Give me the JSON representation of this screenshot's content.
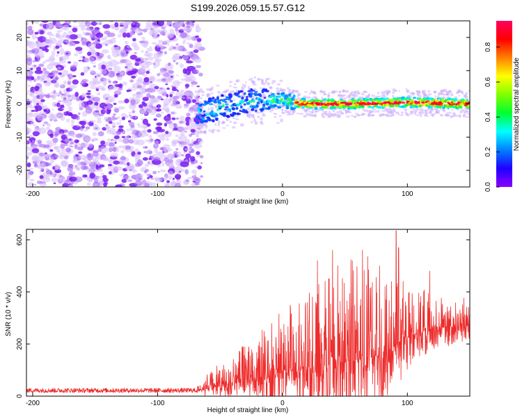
{
  "title": "S199.2026.059.15.57.G12",
  "chart_data": [
    {
      "type": "heatmap",
      "name": "spectrogram",
      "xlabel": "Height of straight line (km)",
      "ylabel": "Frequency (Hz)",
      "xlim": [
        -205,
        150
      ],
      "ylim": [
        -25,
        25
      ],
      "xticks": [
        -200,
        -100,
        0,
        100
      ],
      "xtick_labels": [
        "-200",
        "-100",
        "0",
        "100"
      ],
      "yticks": [
        -20,
        -10,
        0,
        10,
        20
      ],
      "ytick_labels": [
        "-20",
        "-10",
        "0",
        "10",
        "20"
      ],
      "noise_region_x": [
        -205,
        -68
      ],
      "signal_region_x": [
        -68,
        150
      ],
      "signal_frequency_hz": [
        {
          "x": -68,
          "f": -3
        },
        {
          "x": -50,
          "f": -1
        },
        {
          "x": -25,
          "f": 1
        },
        {
          "x": 0,
          "f": 1
        },
        {
          "x": 20,
          "f": 0
        },
        {
          "x": 60,
          "f": 0
        },
        {
          "x": 100,
          "f": 0.5
        },
        {
          "x": 150,
          "f": 0
        }
      ],
      "colorbar": {
        "label": "Normalized spectral amplitude",
        "range": [
          0,
          0.95
        ],
        "ticks": [
          0,
          0.2,
          0.4,
          0.6,
          0.8
        ],
        "tick_labels": [
          "0.0",
          "0.2",
          "0.4",
          "0.6",
          "0.8"
        ],
        "colors": [
          "#8a00ff",
          "#2000ff",
          "#0080ff",
          "#00ffff",
          "#00ff30",
          "#80ff00",
          "#ffff00",
          "#ff8000",
          "#ff0000",
          "#ff0060"
        ]
      }
    },
    {
      "type": "line",
      "name": "snr",
      "xlabel": "Height of straight line (km)",
      "ylabel": "SNR (10 * v/v)",
      "xlim": [
        -205,
        150
      ],
      "ylim": [
        0,
        640
      ],
      "xticks": [
        -200,
        -100,
        0,
        100
      ],
      "xtick_labels": [
        "-200",
        "-100",
        "0",
        "100"
      ],
      "yticks": [
        0,
        200,
        400,
        600
      ],
      "ytick_labels": [
        "0",
        "200",
        "400",
        "600"
      ],
      "color": "#ee2b2b",
      "envelope": [
        {
          "x": -205,
          "base": 22,
          "amp": 18
        },
        {
          "x": -68,
          "base": 22,
          "amp": 18
        },
        {
          "x": -60,
          "base": 30,
          "amp": 60
        },
        {
          "x": -40,
          "base": 50,
          "amp": 110
        },
        {
          "x": -20,
          "base": 70,
          "amp": 180
        },
        {
          "x": 0,
          "base": 90,
          "amp": 240
        },
        {
          "x": 20,
          "base": 110,
          "amp": 320
        },
        {
          "x": 40,
          "base": 130,
          "amp": 380
        },
        {
          "x": 60,
          "base": 140,
          "amp": 400
        },
        {
          "x": 80,
          "base": 160,
          "amp": 380
        },
        {
          "x": 100,
          "base": 230,
          "amp": 220
        },
        {
          "x": 120,
          "base": 260,
          "amp": 130
        },
        {
          "x": 150,
          "base": 270,
          "amp": 110
        }
      ],
      "peaks": [
        {
          "x": 28,
          "y": 520
        },
        {
          "x": 40,
          "y": 560
        },
        {
          "x": 64,
          "y": 560
        },
        {
          "x": 91,
          "y": 635
        },
        {
          "x": 93,
          "y": 570
        },
        {
          "x": 118,
          "y": 480
        },
        {
          "x": 150,
          "y": 410
        }
      ]
    }
  ]
}
